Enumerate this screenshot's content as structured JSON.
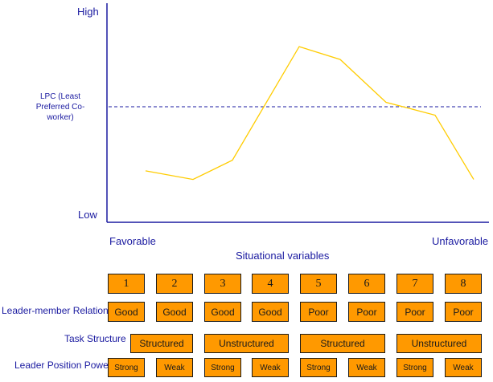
{
  "axis": {
    "high": "High",
    "low": "Low",
    "lpc_line1": "LPC (Least",
    "lpc_line2": "Preferred Co-",
    "lpc_line3": "worker)",
    "favorable": "Favorable",
    "unfavorable": "Unfavorable",
    "situational": "Situational variables"
  },
  "curve": {
    "color": "#ffcc00",
    "dashed_color": "#1a1aa0",
    "points": [
      [
        1,
        0.24
      ],
      [
        2,
        0.2
      ],
      [
        3,
        0.29
      ],
      [
        4,
        0.82
      ],
      [
        5,
        0.76
      ],
      [
        6,
        0.56
      ],
      [
        7,
        0.5
      ],
      [
        8,
        0.2
      ]
    ]
  },
  "rows": {
    "relations_label": "Leader-member Relations",
    "task_label": "Task Structure",
    "power_label": "Leader Position  Power"
  },
  "situations": [
    "1",
    "2",
    "3",
    "4",
    "5",
    "6",
    "7",
    "8"
  ],
  "relations": [
    "Good",
    "Good",
    "Good",
    "Good",
    "Poor",
    "Poor",
    "Poor",
    "Poor"
  ],
  "task_structure": [
    "Structured",
    "Unstructured",
    "Structured",
    "Unstructured"
  ],
  "position_power": [
    "Strong",
    "Weak",
    "Strong",
    "Weak",
    "Strong",
    "Weak",
    "Strong",
    "Weak"
  ],
  "colors": {
    "box_fill": "#ff9900",
    "text_blue": "#1a1aa0"
  }
}
